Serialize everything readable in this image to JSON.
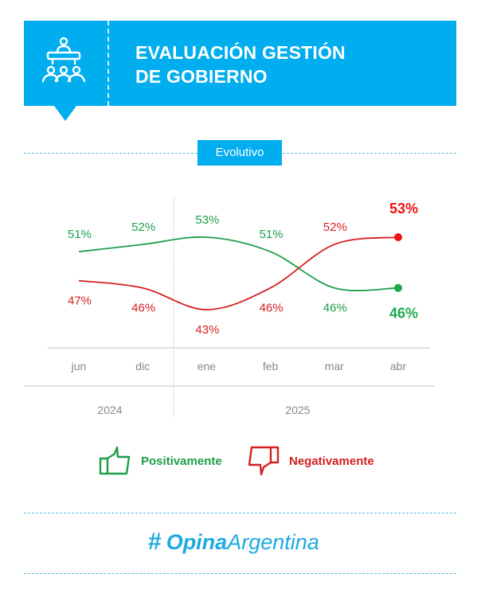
{
  "header": {
    "title_line1": "EVALUACIÓN GESTIÓN",
    "title_line2": "DE GOBIERNO",
    "icon": "presenter-audience-icon"
  },
  "tag": "Evolutivo",
  "colors": {
    "brand": "#00aeef",
    "positive": "#1e9e4a",
    "negative": "#d42020",
    "positive_end": "#1aaa4a",
    "negative_end": "#ee1111"
  },
  "chart_data": {
    "type": "line",
    "title": "Evolutivo",
    "categories": [
      "jun",
      "dic",
      "ene",
      "feb",
      "mar",
      "abr"
    ],
    "years": [
      {
        "label": "2024",
        "months": [
          "jun",
          "dic"
        ]
      },
      {
        "label": "2025",
        "months": [
          "ene",
          "feb",
          "mar",
          "abr"
        ]
      }
    ],
    "series": [
      {
        "name": "Positivamente",
        "values": [
          51,
          52,
          53,
          51,
          46,
          46
        ],
        "labels": [
          "51%",
          "52%",
          "53%",
          "51%",
          "46%",
          "46%"
        ],
        "label_pos": [
          "above",
          "above",
          "above",
          "above",
          "below",
          "below"
        ]
      },
      {
        "name": "Negativamente",
        "values": [
          47,
          46,
          43,
          46,
          52,
          53
        ],
        "labels": [
          "47%",
          "46%",
          "43%",
          "46%",
          "52%",
          "53%"
        ],
        "label_pos": [
          "below",
          "below",
          "below",
          "below",
          "above",
          "above"
        ]
      }
    ],
    "ylim": [
      40,
      56
    ],
    "grid": false,
    "legend": "bottom"
  },
  "legend": {
    "positive": "Positivamente",
    "negative": "Negativamente"
  },
  "footer": {
    "logo_bold": "Opina",
    "logo_regular": "Argentina"
  }
}
